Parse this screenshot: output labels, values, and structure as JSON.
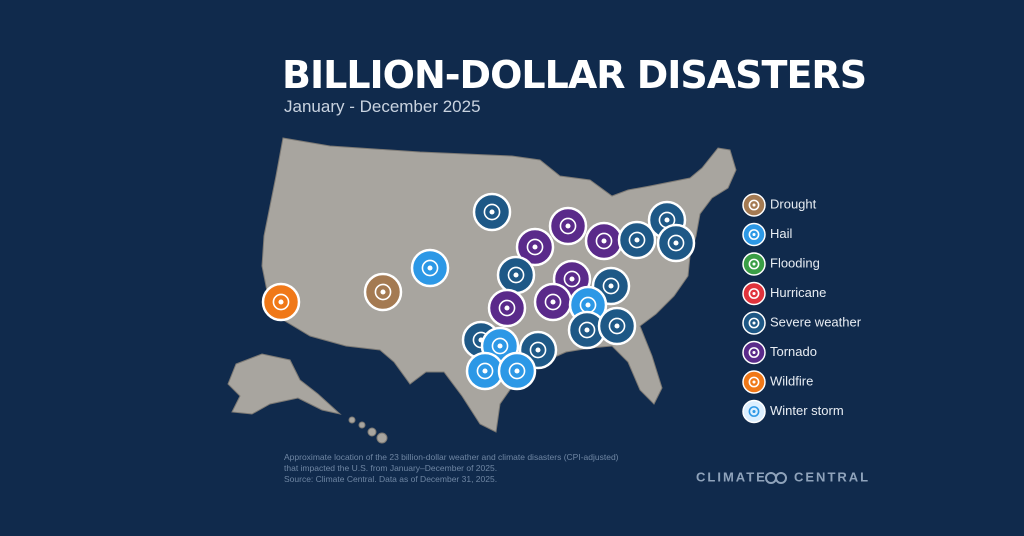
{
  "header": {
    "title": "BILLION-DOLLAR DISASTERS",
    "subtitle": "January - December 2025"
  },
  "legend": {
    "items": [
      {
        "label": "Drought",
        "color": "#a47a52"
      },
      {
        "label": "Hail",
        "color": "#2c98e6"
      },
      {
        "label": "Flooding",
        "color": "#3a9e46"
      },
      {
        "label": "Hurricane",
        "color": "#e0333c"
      },
      {
        "label": "Severe weather",
        "color": "#1e5886"
      },
      {
        "label": "Tornado",
        "color": "#5a2a8a"
      },
      {
        "label": "Wildfire",
        "color": "#f07818"
      },
      {
        "label": "Winter storm",
        "color": "#dcefff"
      }
    ]
  },
  "footnote": {
    "lines": [
      "Approximate location of the 23 billion-dollar weather and climate disasters (CPI-adjusted)",
      "that impacted the U.S. from January–December of 2025.",
      "Source: Climate Central. Data as of December 31, 2025."
    ]
  },
  "brand": {
    "left": "CLIMATE",
    "right": "CENTRAL"
  }
}
